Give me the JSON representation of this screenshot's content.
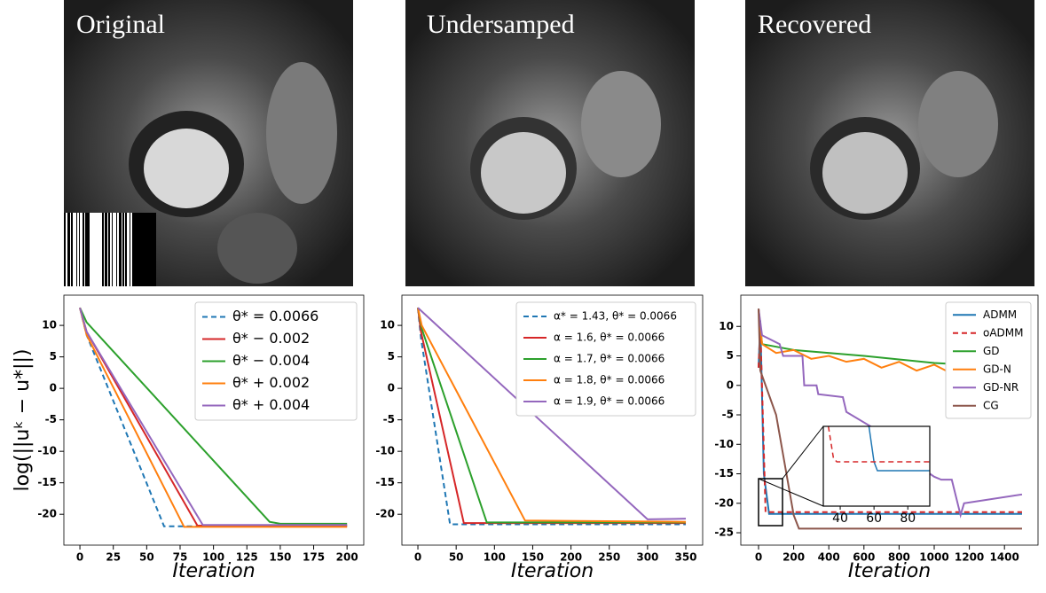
{
  "images": [
    {
      "label": "Original"
    },
    {
      "label": "Undersamped"
    },
    {
      "label": "Recovered"
    }
  ],
  "y_label": "log(||uᵏ − u*||)",
  "chart_data": [
    {
      "type": "line",
      "x_label": "Iteration",
      "legend": "upper right",
      "xlim": [
        -12,
        212.5
      ],
      "xticks": [
        0,
        25,
        50,
        75,
        100,
        125,
        150,
        175,
        200
      ],
      "ylim": [
        -24.9,
        14.8
      ],
      "yticks": [
        -20,
        -15,
        -10,
        -5,
        0,
        5,
        10
      ],
      "series": [
        {
          "name": "θ* = 0.0066",
          "color": "#1f77b4",
          "dash": true,
          "x": [
            0,
            5,
            63,
            200
          ],
          "values": [
            12.8,
            8.5,
            -21.9,
            -21.9
          ]
        },
        {
          "name": "θ* − 0.002",
          "color": "#d62728",
          "x": [
            0,
            5,
            88,
            200
          ],
          "values": [
            12.8,
            9,
            -21.8,
            -21.8
          ]
        },
        {
          "name": "θ* − 0.004",
          "color": "#2ca02c",
          "x": [
            0,
            5,
            142,
            150,
            200
          ],
          "values": [
            12.8,
            10.5,
            -21.2,
            -21.5,
            -21.5
          ]
        },
        {
          "name": "θ* + 0.002",
          "color": "#ff7f0e",
          "x": [
            0,
            5,
            78,
            200
          ],
          "values": [
            12.8,
            8.5,
            -22,
            -22
          ]
        },
        {
          "name": "θ* + 0.004",
          "color": "#9467bd",
          "x": [
            0,
            5,
            92,
            200
          ],
          "values": [
            12.8,
            9,
            -21.7,
            -21.7
          ]
        }
      ]
    },
    {
      "type": "line",
      "x_label": "Iteration",
      "legend": "upper right",
      "xlim": [
        -20.9,
        372
      ],
      "xticks": [
        0,
        50,
        100,
        150,
        200,
        250,
        300,
        350
      ],
      "ylim": [
        -24.9,
        14.8
      ],
      "yticks": [
        -20,
        -15,
        -10,
        -5,
        0,
        5,
        10
      ],
      "series": [
        {
          "name": "α* = 1.43, θ* = 0.0066",
          "color": "#1f77b4",
          "dash": true,
          "x": [
            0,
            4,
            42,
            350
          ],
          "values": [
            12.8,
            8,
            -21.6,
            -21.6
          ]
        },
        {
          "name": "α = 1.6, θ* = 0.0066",
          "color": "#d62728",
          "x": [
            0,
            4,
            60,
            350
          ],
          "values": [
            12.8,
            9,
            -21.4,
            -21.4
          ]
        },
        {
          "name": "α = 1.7, θ* = 0.0066",
          "color": "#2ca02c",
          "x": [
            0,
            5,
            90,
            350
          ],
          "values": [
            12.8,
            9.5,
            -21.3,
            -21.3
          ]
        },
        {
          "name": "α = 1.8, θ* = 0.0066",
          "color": "#ff7f0e",
          "x": [
            0,
            5,
            140,
            350
          ],
          "values": [
            12.8,
            10,
            -21,
            -21.2
          ]
        },
        {
          "name": "α = 1.9, θ* = 0.0066",
          "color": "#9467bd",
          "x": [
            0,
            300,
            350
          ],
          "values": [
            12.8,
            -20.8,
            -20.7
          ]
        }
      ]
    },
    {
      "type": "line",
      "x_label": "Iteration",
      "legend": "upper right",
      "xlim": [
        -101,
        1591
      ],
      "xticks": [
        0,
        200,
        400,
        600,
        800,
        1000,
        1200,
        1400
      ],
      "ylim": [
        -27.1,
        15.3
      ],
      "yticks": [
        -25,
        -20,
        -15,
        -10,
        -5,
        0,
        5,
        10
      ],
      "series": [
        {
          "name": "ADMM",
          "color": "#1f77b4",
          "x": [
            0,
            10,
            30,
            60,
            1500
          ],
          "values": [
            3,
            11,
            -15,
            -21.8,
            -21.8
          ]
        },
        {
          "name": "oADMM",
          "color": "#d62728",
          "dash": true,
          "x": [
            0,
            10,
            40,
            1500
          ],
          "values": [
            3,
            10,
            -21.5,
            -21.5
          ]
        },
        {
          "name": "GD",
          "color": "#2ca02c",
          "x": [
            0,
            20,
            200,
            600,
            1000,
            1500
          ],
          "values": [
            13,
            7,
            6,
            5,
            3.8,
            3
          ]
        },
        {
          "name": "GD-N",
          "color": "#ff7f0e",
          "x": [
            0,
            20,
            100,
            200,
            300,
            400,
            500,
            600,
            700,
            800,
            900,
            1000,
            1100,
            1200,
            1300,
            1400,
            1500
          ],
          "values": [
            13,
            7,
            5.5,
            6,
            4.5,
            5,
            4,
            4.5,
            3,
            4,
            2.5,
            3.5,
            2,
            3,
            1.5,
            2.5,
            1.5
          ]
        },
        {
          "name": "GD-NR",
          "color": "#9467bd",
          "x": [
            0,
            20,
            120,
            140,
            250,
            260,
            330,
            340,
            480,
            500,
            640,
            660,
            1000,
            1040,
            1100,
            1150,
            1170,
            1500
          ],
          "values": [
            13,
            8.5,
            7,
            5,
            5,
            0,
            0,
            -1.5,
            -2,
            -4.5,
            -7,
            -8.5,
            -15.5,
            -16,
            -16,
            -22,
            -20,
            -18.5
          ]
        },
        {
          "name": "CG",
          "color": "#8c564b",
          "x": [
            0,
            10,
            100,
            200,
            230,
            1500
          ],
          "values": [
            13,
            2.5,
            -5,
            -22,
            -24.3,
            -24.3
          ]
        }
      ],
      "inset": {
        "xlim": [
          30,
          93
        ],
        "xticks": [
          40,
          60,
          80
        ],
        "ylim": [
          -22,
          -13
        ],
        "series": [
          {
            "color": "#1f77b4",
            "x": [
              57,
              60,
              62,
              93
            ],
            "values": [
              -13,
              -17,
              -18,
              -18
            ]
          },
          {
            "color": "#d62728",
            "dash": true,
            "x": [
              33,
              36,
              38,
              93
            ],
            "values": [
              -13,
              -16.6,
              -17,
              -17
            ]
          }
        ]
      }
    }
  ]
}
